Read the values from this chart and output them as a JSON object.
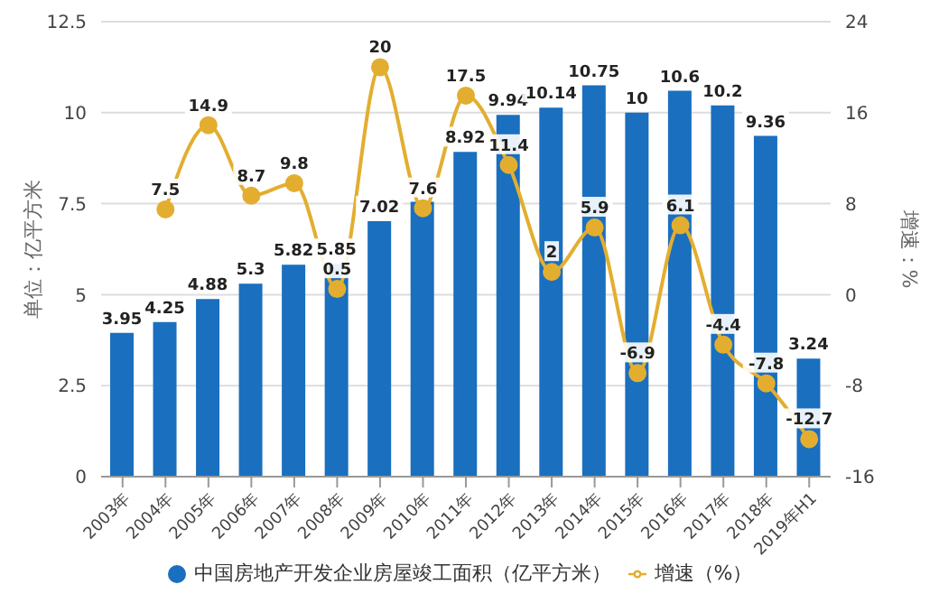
{
  "chart_data": {
    "type": "bar",
    "categories": [
      "2003年",
      "2004年",
      "2005年",
      "2006年",
      "2007年",
      "2008年",
      "2009年",
      "2010年",
      "2011年",
      "2012年",
      "2013年",
      "2014年",
      "2015年",
      "2016年",
      "2017年",
      "2018年",
      "2019年H1"
    ],
    "series": [
      {
        "name": "中国房地产开发企业房屋竣工面积（亿平方米）",
        "color": "#1a6fbf",
        "values": [
          3.95,
          4.25,
          4.88,
          5.3,
          5.82,
          5.85,
          7.02,
          7.55,
          8.92,
          9.94,
          10.14,
          10.75,
          10,
          10.6,
          10.2,
          9.36,
          3.24
        ],
        "value_labels": [
          "3.95",
          "4.25",
          "4.88",
          "5.3",
          "5.82",
          "5.85",
          "7.02",
          null,
          "8.92",
          "9.94",
          "10.14",
          "10.75",
          "10",
          "10.6",
          "10.2",
          "9.36",
          "3.24"
        ]
      },
      {
        "name": "增速（%）",
        "type": "line",
        "axis": "y2",
        "color": "#e3ae2f",
        "values": [
          null,
          7.5,
          14.9,
          8.7,
          9.8,
          0.5,
          20,
          7.6,
          17.5,
          11.4,
          2,
          5.9,
          -6.9,
          6.1,
          -4.4,
          -7.8,
          -12.7
        ],
        "value_labels": [
          null,
          "7.5",
          "14.9",
          "8.7",
          "9.8",
          "0.5",
          "20",
          "7.6",
          "17.5",
          "11.4",
          "2",
          "5.9",
          "-6.9",
          "6.1",
          "-4.4",
          "-7.8",
          "-12.7"
        ]
      }
    ],
    "ylabel": "单位：亿平方米",
    "y2label": "增速：%",
    "ylim": [
      0,
      12.5
    ],
    "yticks": [
      0,
      2.5,
      5,
      7.5,
      10,
      12.5
    ],
    "y2lim": [
      -16,
      24
    ],
    "y2ticks": [
      -16,
      -8,
      0,
      8,
      16,
      24
    ],
    "grid": "y",
    "legend": "bottom",
    "marker": "circle"
  }
}
